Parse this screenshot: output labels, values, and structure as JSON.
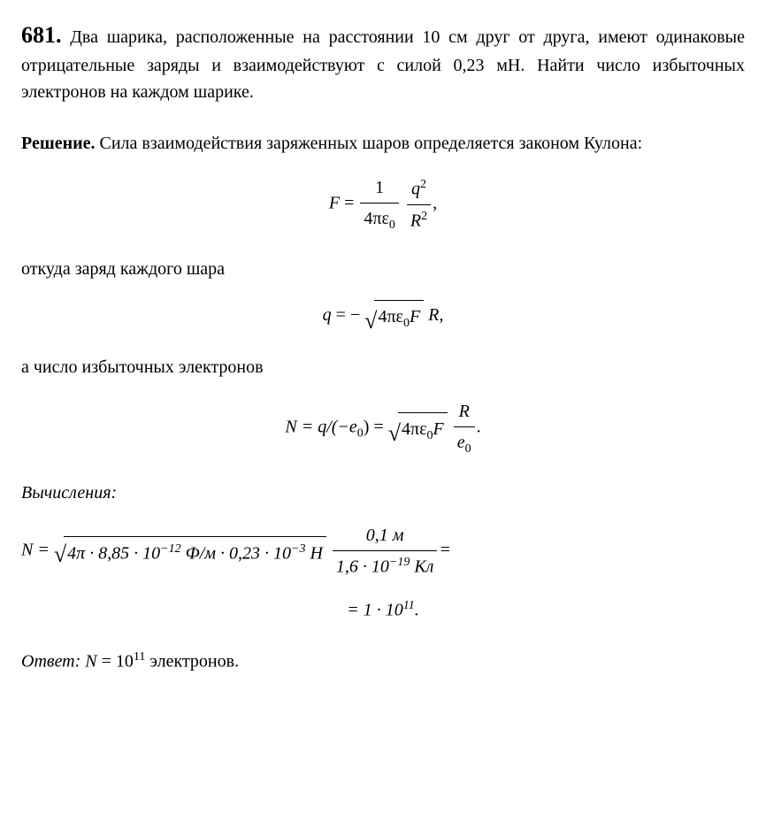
{
  "problem": {
    "number": "681.",
    "text": "Два шарика, расположенные на расстоянии 10 см друг от друга, имеют одинаковые отрицательные заряды и взаимодействуют с силой 0,23 мН. Найти число избыточных электронов на каждом шарике."
  },
  "solution": {
    "heading": "Решение.",
    "intro": "Сила взаимодействия заряженных шаров определяется законом Кулона:",
    "formula1": {
      "lhs": "F",
      "eq": "=",
      "frac1_num": "1",
      "frac1_den_a": "4πε",
      "frac1_den_sub": "0",
      "frac2_num_a": "q",
      "frac2_num_sup": "2",
      "frac2_den_a": "R",
      "frac2_den_sup": "2",
      "tail": ","
    },
    "line2": "откуда заряд каждого шара",
    "formula2": {
      "lhs": "q",
      "eq": "= −",
      "rad_a": "4πε",
      "rad_sub": "0",
      "rad_b": "F",
      "after": " R,"
    },
    "line3": "а число избыточных электронов",
    "formula3": {
      "lhs": "N",
      "eq1": "= q/(−e",
      "eq1_sub": "0",
      "eq1_close": ") =",
      "rad_a": "4πε",
      "rad_sub": "0",
      "rad_b": "F",
      "frac_num": "R",
      "frac_den_a": "e",
      "frac_den_sub": "0",
      "tail": "."
    },
    "calc_heading": "Вычисления:",
    "calc": {
      "lhs": "N",
      "eq": "=",
      "rad_text_a": "4π · 8,85 · 10",
      "rad_sup1": "−12",
      "rad_text_b": " Ф/м · 0,23 · 10",
      "rad_sup2": "−3",
      "rad_text_c": " Н",
      "frac_num": "0,1 м",
      "frac_den_a": "1,6 · 10",
      "frac_den_sup": "−19",
      "frac_den_b": " Кл",
      "tail": "="
    },
    "calc_result_a": "= 1 · 10",
    "calc_result_sup": "11",
    "calc_result_b": "."
  },
  "answer": {
    "label": "Ответ:",
    "var": "N",
    "eq": " = 10",
    "sup": "11",
    "tail": " электронов."
  }
}
